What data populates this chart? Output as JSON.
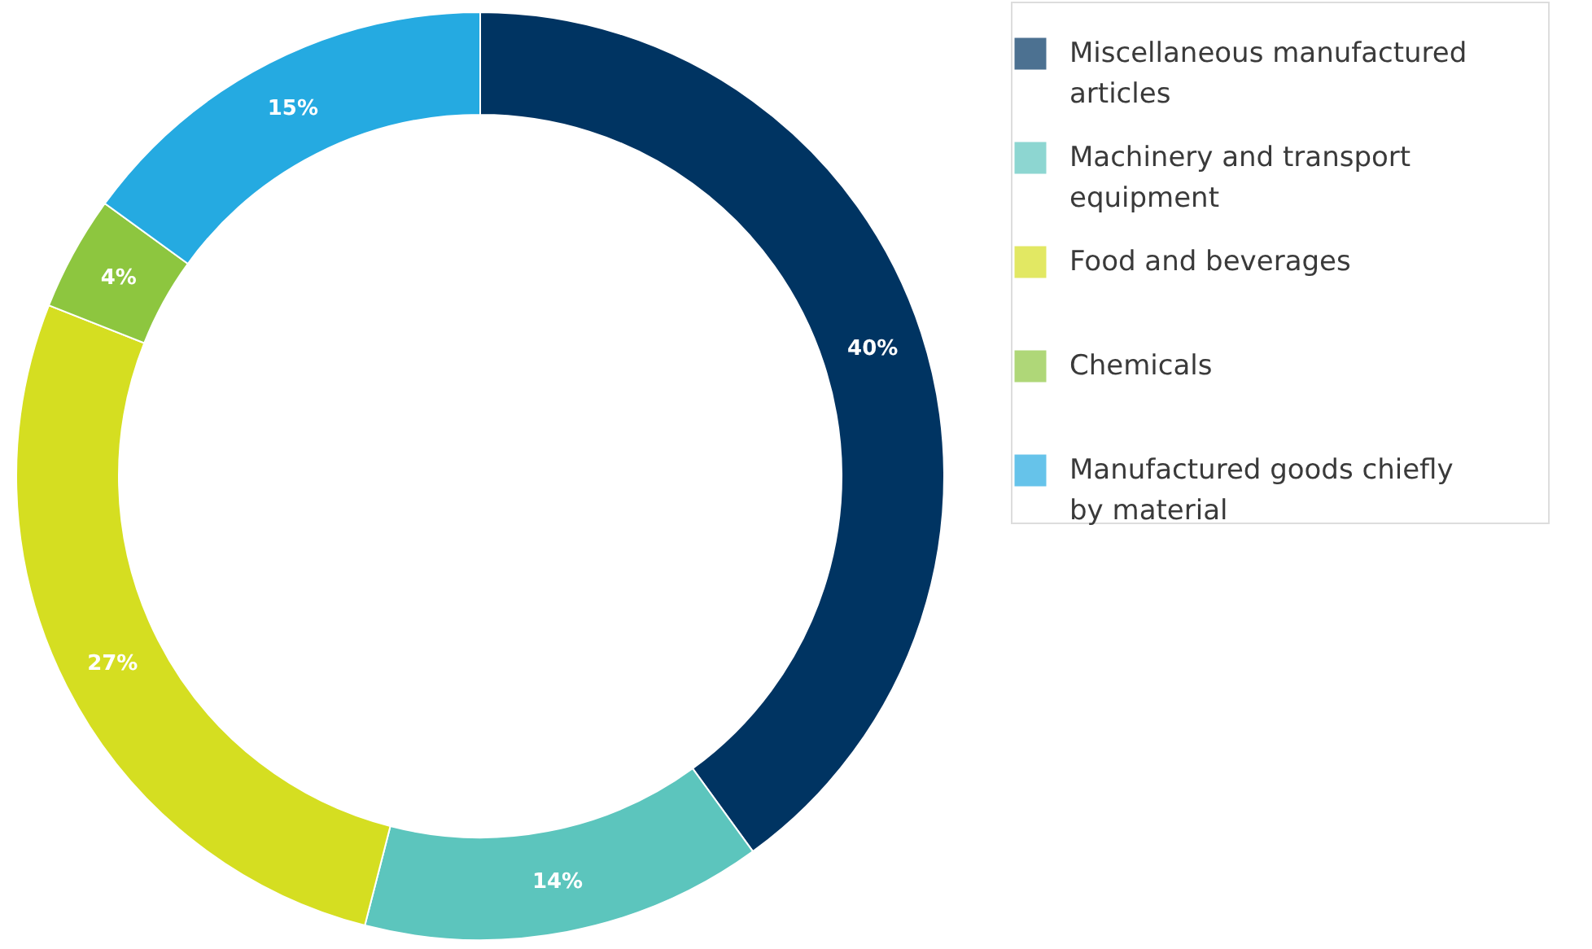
{
  "chart_data": {
    "type": "donut",
    "categories": [
      "Miscellaneous manufactured articles",
      "Machinery and transport equipment",
      "Food and beverages",
      "Chemicals",
      "Manufactured goods chiefly by material"
    ],
    "values": [
      40,
      14,
      27,
      4,
      15
    ],
    "colors": [
      "#003462",
      "#5cc5bd",
      "#d5de21",
      "#8dc63f",
      "#25aae1"
    ],
    "value_labels": [
      "40%",
      "14%",
      "27%",
      "4%",
      "15%"
    ],
    "legend": "right"
  }
}
